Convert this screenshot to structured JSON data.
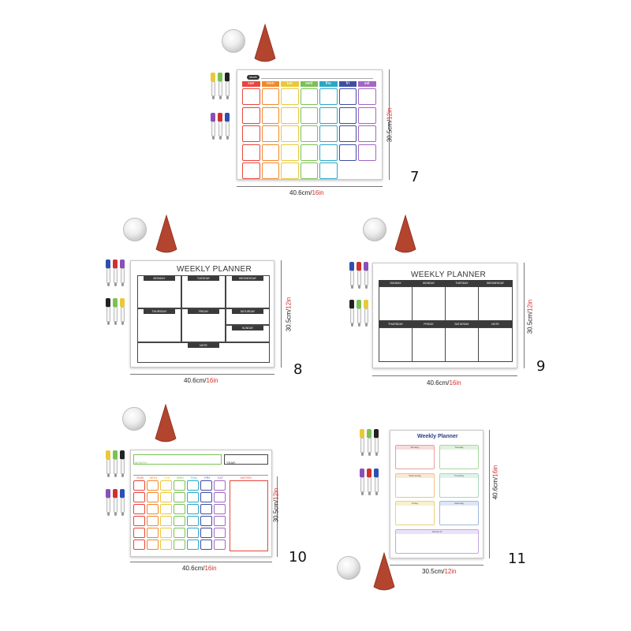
{
  "products": [
    {
      "number": "7",
      "width_label": "40.6cm/",
      "width_label_red": "16in",
      "height_label": "30.5cm/",
      "height_label_red": "12in",
      "header_tag": "Month",
      "day_headers": [
        "sun",
        "mon",
        "tue",
        "wed",
        "thu",
        "fri",
        "sat"
      ],
      "day_colors": [
        "#e8453c",
        "#f0892a",
        "#e9c93a",
        "#7ac254",
        "#2aa8c8",
        "#3f4fa3",
        "#a466c4"
      ]
    },
    {
      "number": "8",
      "title": "WEEKLY PLANNER",
      "width_label": "40.6cm/",
      "width_label_red": "16in",
      "height_label": "30.5cm/",
      "height_label_red": "12in",
      "day_labels": [
        "MONDAY",
        "TUESDAY",
        "WEDNESDAY",
        "THURSDAY",
        "FRIDAY",
        "SATURDAY",
        "SUNDAY"
      ],
      "notes_label": "NOTE"
    },
    {
      "number": "9",
      "title": "WEEKLY PLANNER",
      "width_label": "40.6cm/",
      "width_label_red": "16in",
      "height_label": "30.5cm/",
      "height_label_red": "12in",
      "day_labels": [
        "SUNDAY",
        "MONDAY",
        "TUESDAY",
        "WEDNESDAY",
        "THURSDAY",
        "FRIDAY",
        "SATURDAY",
        "NOTE"
      ]
    },
    {
      "number": "10",
      "width_label": "40.6cm/",
      "width_label_red": "16in",
      "height_label": "30.5cm/",
      "height_label_red": "12in",
      "month_label": "MONTH:",
      "year_label": "YEAR:",
      "day_headers": [
        "SUN",
        "MON",
        "TUE",
        "WED",
        "THU",
        "FRI",
        "SAT"
      ],
      "notes_label": "NOTES",
      "day_colors": [
        "#e8453c",
        "#f0892a",
        "#e9c93a",
        "#7ac254",
        "#2aa8c8",
        "#3f4fa3",
        "#a466c4"
      ]
    },
    {
      "number": "11",
      "title": "Weekly Planner",
      "width_label": "30.5cm/",
      "width_label_red": "12in",
      "height_label": "40.6cm/",
      "height_label_red": "16in",
      "box_labels": [
        "Monday",
        "Tuesday",
        "Wednesday",
        "Thursday",
        "Friday",
        "Saturday",
        "Sunday",
        "Weekend"
      ]
    }
  ],
  "marker_colors": {
    "set_a": [
      "#e9c93a",
      "#7ac254",
      "#222222",
      "#8a4fb8",
      "#d0312d",
      "#2c4fb0"
    ],
    "set_b": [
      "#2c4fb0",
      "#d0312d",
      "#8a4fb8",
      "#222222",
      "#7ac254",
      "#e9c93a"
    ]
  }
}
